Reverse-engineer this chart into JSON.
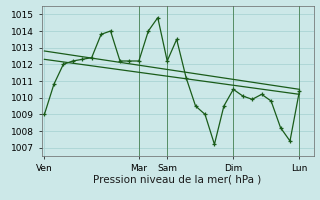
{
  "background_color": "#cce8e8",
  "grid_color": "#aad4d4",
  "line_color": "#1a5c1a",
  "xlabel": "Pression niveau de la mer( hPa )",
  "ylim": [
    1006.5,
    1015.5
  ],
  "yticks": [
    1007,
    1008,
    1009,
    1010,
    1011,
    1012,
    1013,
    1014,
    1015
  ],
  "xtick_labels": [
    "Ven",
    "Mar",
    "Sam",
    "Dim",
    "Lun"
  ],
  "xtick_positions": [
    0,
    10,
    13,
    20,
    27
  ],
  "xlim": [
    -0.3,
    28.5
  ],
  "series1_x": [
    0,
    1,
    2,
    3,
    4,
    5,
    6,
    7,
    8,
    9,
    10,
    11,
    12,
    13,
    14,
    15,
    16,
    17,
    18,
    19,
    20,
    21,
    22,
    23,
    24,
    25,
    26,
    27
  ],
  "series1_y": [
    1009.0,
    1010.8,
    1012.0,
    1012.2,
    1012.3,
    1012.4,
    1013.8,
    1014.0,
    1012.2,
    1012.2,
    1012.2,
    1014.0,
    1014.8,
    1012.2,
    1013.5,
    1011.2,
    1009.5,
    1009.0,
    1007.2,
    1009.5,
    1010.5,
    1010.1,
    1009.9,
    1010.2,
    1009.8,
    1008.2,
    1007.4,
    1010.4
  ],
  "series2_x": [
    0,
    27
  ],
  "series2_y": [
    1012.8,
    1010.5
  ],
  "series3_x": [
    0,
    27
  ],
  "series3_y": [
    1012.3,
    1010.2
  ],
  "vline_positions": [
    10,
    13,
    20,
    27
  ],
  "font_size_label": 7.5,
  "font_size_tick": 6.5
}
